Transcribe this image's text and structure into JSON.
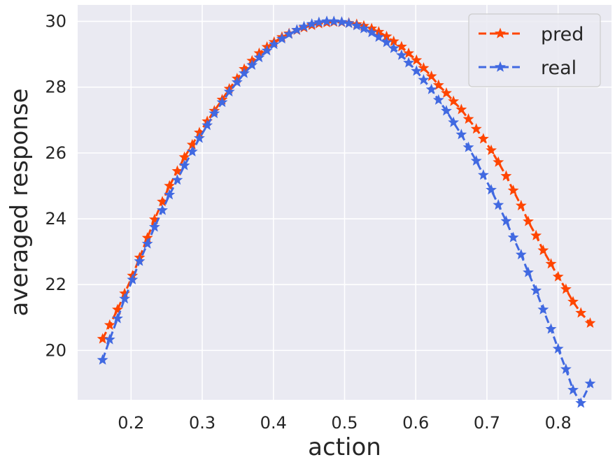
{
  "chart_data": {
    "type": "line",
    "title": "",
    "xlabel": "action",
    "ylabel": "averaged response",
    "xlim": [
      0.125,
      0.875
    ],
    "ylim": [
      18.5,
      30.5
    ],
    "xticks": [
      "0.2",
      "0.3",
      "0.4",
      "0.5",
      "0.6",
      "0.7",
      "0.8"
    ],
    "yticks": [
      "20",
      "22",
      "24",
      "26",
      "28",
      "30"
    ],
    "grid": true,
    "legend_position": "top-right",
    "background": "#eaeaf2",
    "series": [
      {
        "name": "pred",
        "color": "#ff4500",
        "style": "dashed",
        "marker": "star",
        "x": [
          0.16,
          0.17,
          0.181,
          0.191,
          0.202,
          0.212,
          0.223,
          0.233,
          0.244,
          0.254,
          0.265,
          0.275,
          0.286,
          0.296,
          0.307,
          0.317,
          0.328,
          0.338,
          0.349,
          0.359,
          0.37,
          0.38,
          0.391,
          0.401,
          0.412,
          0.422,
          0.433,
          0.443,
          0.454,
          0.464,
          0.475,
          0.485,
          0.496,
          0.506,
          0.517,
          0.527,
          0.538,
          0.548,
          0.559,
          0.569,
          0.58,
          0.59,
          0.601,
          0.611,
          0.622,
          0.632,
          0.643,
          0.653,
          0.664,
          0.674,
          0.685,
          0.695,
          0.706,
          0.716,
          0.727,
          0.737,
          0.748,
          0.758,
          0.769,
          0.779,
          0.79,
          0.8,
          0.811,
          0.821,
          0.832,
          0.845
        ],
        "y": [
          20.35,
          20.77,
          21.24,
          21.73,
          22.27,
          22.82,
          23.42,
          23.98,
          24.52,
          25.0,
          25.45,
          25.87,
          26.25,
          26.62,
          26.96,
          27.28,
          27.62,
          27.95,
          28.26,
          28.55,
          28.8,
          29.03,
          29.22,
          29.37,
          29.52,
          29.63,
          29.73,
          29.81,
          29.88,
          29.93,
          29.96,
          29.98,
          29.97,
          29.95,
          29.91,
          29.86,
          29.78,
          29.68,
          29.54,
          29.39,
          29.23,
          29.03,
          28.82,
          28.58,
          28.33,
          28.06,
          27.82,
          27.57,
          27.32,
          27.03,
          26.73,
          26.43,
          26.08,
          25.72,
          25.3,
          24.86,
          24.4,
          23.92,
          23.49,
          23.04,
          22.63,
          22.24,
          21.86,
          21.48,
          21.14,
          20.83
        ]
      },
      {
        "name": "real",
        "color": "#4169e1",
        "style": "dashed",
        "marker": "star",
        "x": [
          0.16,
          0.17,
          0.181,
          0.191,
          0.202,
          0.212,
          0.223,
          0.233,
          0.244,
          0.254,
          0.265,
          0.275,
          0.286,
          0.296,
          0.307,
          0.317,
          0.328,
          0.338,
          0.349,
          0.359,
          0.37,
          0.38,
          0.391,
          0.401,
          0.412,
          0.422,
          0.433,
          0.443,
          0.454,
          0.464,
          0.475,
          0.485,
          0.496,
          0.506,
          0.517,
          0.527,
          0.538,
          0.548,
          0.559,
          0.569,
          0.58,
          0.59,
          0.601,
          0.611,
          0.622,
          0.632,
          0.643,
          0.653,
          0.664,
          0.674,
          0.685,
          0.695,
          0.706,
          0.716,
          0.727,
          0.737,
          0.748,
          0.758,
          0.769,
          0.779,
          0.79,
          0.8,
          0.811,
          0.821,
          0.832,
          0.845
        ],
        "y": [
          19.71,
          20.33,
          20.97,
          21.57,
          22.15,
          22.71,
          23.24,
          23.75,
          24.26,
          24.73,
          25.18,
          25.62,
          26.04,
          26.45,
          26.84,
          27.2,
          27.54,
          27.86,
          28.15,
          28.42,
          28.67,
          28.9,
          29.11,
          29.3,
          29.47,
          29.61,
          29.74,
          29.84,
          29.92,
          29.97,
          30.0,
          30.0,
          29.98,
          29.94,
          29.87,
          29.78,
          29.66,
          29.52,
          29.36,
          29.18,
          28.97,
          28.74,
          28.49,
          28.22,
          27.93,
          27.61,
          27.28,
          26.93,
          26.56,
          26.17,
          25.76,
          25.33,
          24.88,
          24.42,
          23.93,
          23.43,
          22.91,
          22.37,
          21.82,
          21.24,
          20.65,
          20.05,
          19.43,
          18.8,
          18.4,
          18.99
        ]
      }
    ]
  }
}
